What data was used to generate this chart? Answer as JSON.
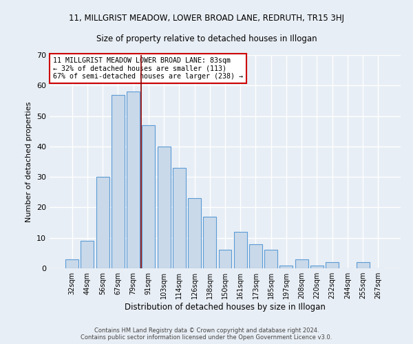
{
  "title_line1": "11, MILLGRIST MEADOW, LOWER BROAD LANE, REDRUTH, TR15 3HJ",
  "title_line2": "Size of property relative to detached houses in Illogan",
  "xlabel": "Distribution of detached houses by size in Illogan",
  "ylabel": "Number of detached properties",
  "categories": [
    "32sqm",
    "44sqm",
    "56sqm",
    "67sqm",
    "79sqm",
    "91sqm",
    "103sqm",
    "114sqm",
    "126sqm",
    "138sqm",
    "150sqm",
    "161sqm",
    "173sqm",
    "185sqm",
    "197sqm",
    "208sqm",
    "220sqm",
    "232sqm",
    "244sqm",
    "255sqm",
    "267sqm"
  ],
  "values": [
    3,
    9,
    30,
    57,
    58,
    47,
    40,
    33,
    23,
    17,
    6,
    12,
    8,
    6,
    1,
    3,
    1,
    2,
    0,
    2,
    0
  ],
  "bar_color": "#c9d9ea",
  "bar_edge_color": "#5b9bd5",
  "property_line_x": 4.5,
  "property_line_color": "#8b0000",
  "annotation_text": "11 MILLGRIST MEADOW LOWER BROAD LANE: 83sqm\n← 32% of detached houses are smaller (113)\n67% of semi-detached houses are larger (238) →",
  "annotation_box_color": "#ffffff",
  "annotation_box_edge_color": "#cc0000",
  "ylim": [
    0,
    70
  ],
  "yticks": [
    0,
    10,
    20,
    30,
    40,
    50,
    60,
    70
  ],
  "background_color": "#e8eef5",
  "grid_color": "#ffffff",
  "footer_line1": "Contains HM Land Registry data © Crown copyright and database right 2024.",
  "footer_line2": "Contains public sector information licensed under the Open Government Licence v3.0."
}
